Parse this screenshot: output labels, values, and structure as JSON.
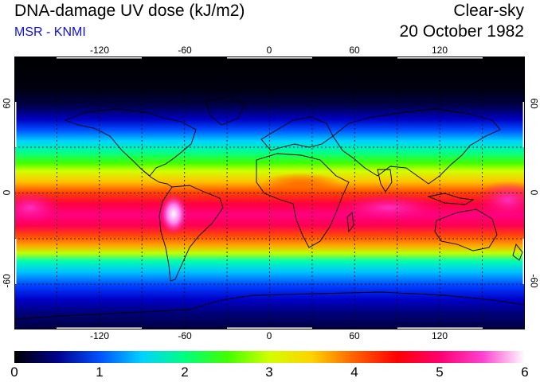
{
  "header": {
    "title": "DNA-damage UV dose (kJ/m2)",
    "source": "MSR - KNMI",
    "condition": "Clear-sky",
    "date": "20 October 1982"
  },
  "map": {
    "projection": "equirectangular",
    "lon_range": [
      -180,
      180
    ],
    "lat_range": [
      -90,
      90
    ],
    "lon_ticks": [
      "-120",
      "-60",
      "0",
      "60",
      "120"
    ],
    "lat_ticks": [
      "60",
      "0",
      "-60"
    ],
    "grid_lon_step": 30,
    "grid_lat_step": 30,
    "grid_style": "dotted"
  },
  "colorbar": {
    "min": 0,
    "max": 6,
    "ticks": [
      "0",
      "1",
      "2",
      "3",
      "4",
      "5",
      "6"
    ],
    "colors": [
      "#000000",
      "#00008a",
      "#0050ff",
      "#00d2ff",
      "#00ff80",
      "#40ff00",
      "#d2ff00",
      "#ffd200",
      "#ff6000",
      "#ff0000",
      "#ff0070",
      "#ff40d0",
      "#ffffff"
    ]
  }
}
